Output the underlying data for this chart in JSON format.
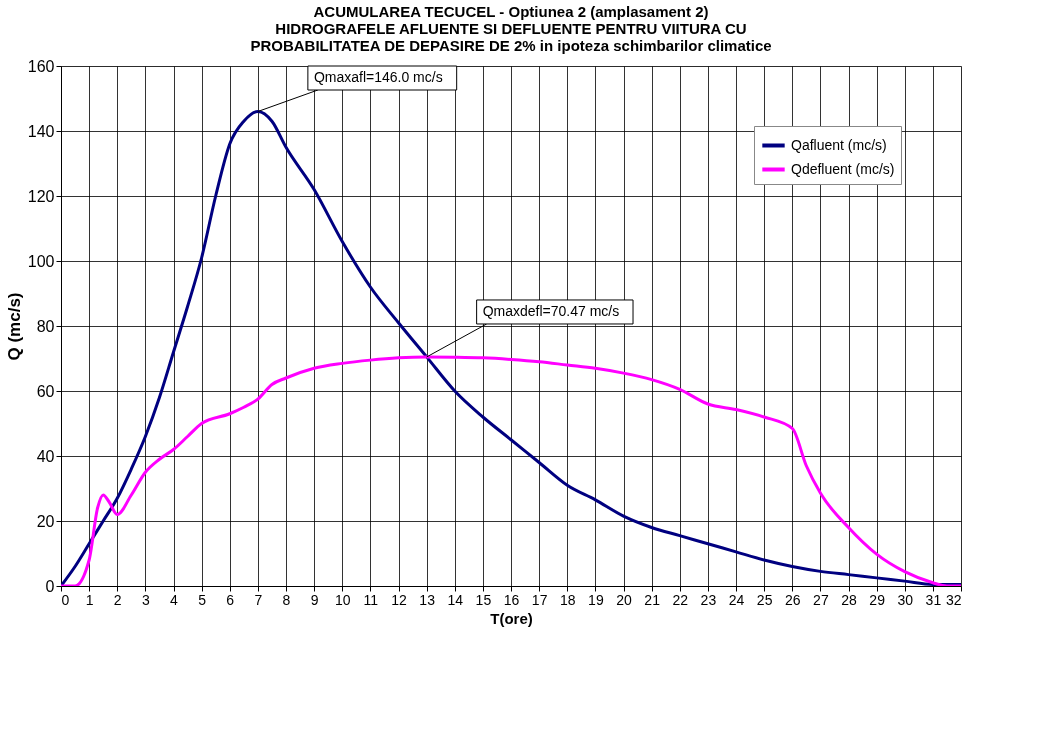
{
  "chart_data": {
    "type": "line",
    "title": [
      "ACUMULAREA TECUCEL - Optiunea 2 (amplasament 2)",
      "HIDROGRAFELE AFLUENTE SI DEFLUENTE PENTRU VIITURA CU",
      "PROBABILITATEA DE DEPASIRE DE 2% in ipoteza schimbarilor climatice"
    ],
    "xlabel": "T(ore)",
    "ylabel": "Q (mc/s)",
    "series": [
      {
        "name": "Qafluent (mc/s)",
        "color": "#000080",
        "x": [
          0,
          0.5,
          1,
          1.5,
          2,
          2.5,
          3,
          3.5,
          4,
          4.5,
          5,
          5.5,
          6,
          6.5,
          7,
          7.5,
          8,
          9,
          10,
          11,
          12,
          13,
          14,
          15,
          16,
          17,
          18,
          19,
          20,
          21,
          22,
          23,
          24,
          25,
          26,
          27,
          28,
          29,
          30,
          31,
          32
        ],
        "values": [
          0,
          6,
          13,
          20,
          27,
          36,
          46,
          58,
          72,
          86,
          101,
          120,
          136,
          143,
          146,
          143,
          135,
          122,
          106,
          92,
          81,
          70.5,
          60,
          52,
          45,
          38,
          31,
          26.5,
          21.5,
          18,
          15.5,
          13,
          10.5,
          8,
          6,
          4.5,
          3.5,
          2.5,
          1.5,
          0.5,
          0.5
        ]
      },
      {
        "name": "Qdefluent (mc/s)",
        "color": "#ff00ff",
        "x": [
          0,
          0.5,
          1,
          1.3,
          1.5,
          1.7,
          2,
          2.5,
          3,
          3.5,
          4,
          4.5,
          5,
          6,
          6.5,
          7,
          7.5,
          8,
          9,
          10,
          11,
          12,
          13,
          14,
          15,
          16,
          17,
          18,
          19,
          20,
          21,
          22,
          23,
          24,
          25,
          26,
          26.5,
          27,
          28,
          29,
          30,
          31,
          31.5,
          32
        ],
        "values": [
          0,
          0,
          8,
          24,
          28,
          26,
          22,
          28,
          35,
          39,
          42,
          46,
          50,
          53,
          55,
          57.5,
          62,
          64,
          67,
          68.5,
          69.5,
          70.2,
          70.47,
          70.4,
          70.2,
          69.7,
          69,
          68,
          67,
          65.5,
          63.5,
          60.5,
          56,
          54.3,
          52,
          48.5,
          37,
          28.6,
          18,
          9.8,
          4.4,
          1,
          0,
          0
        ]
      }
    ],
    "xlim": [
      0,
      32
    ],
    "xticks": [
      0,
      1,
      2,
      3,
      4,
      5,
      6,
      7,
      8,
      9,
      10,
      11,
      12,
      13,
      14,
      15,
      16,
      17,
      18,
      19,
      20,
      21,
      22,
      23,
      24,
      25,
      26,
      27,
      28,
      29,
      30,
      31,
      32
    ],
    "ylim": [
      0,
      160
    ],
    "yticks": [
      0,
      20,
      40,
      60,
      80,
      100,
      120,
      140,
      160
    ],
    "grid": true,
    "legend": "top right",
    "marker": "none",
    "line_style": "solid",
    "annotations": [
      {
        "text": "Qmaxafl=146.0 mc/s",
        "x": 7,
        "y": 146
      },
      {
        "text": "Qmaxdefl=70.47 mc/s",
        "x": 13,
        "y": 70.47
      }
    ]
  }
}
